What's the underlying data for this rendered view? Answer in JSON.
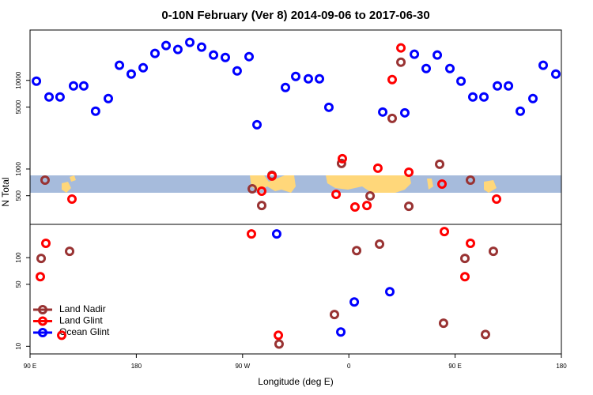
{
  "chart_data": {
    "type": "scatter",
    "title": "0-10N February (Ver 8)   2014-09-06 to 2017-06-30",
    "x_label": "Longitude (deg E)",
    "y_label": "N Total",
    "xlim": [
      90,
      540
    ],
    "xticks": [
      {
        "value": 90,
        "label": "90 E"
      },
      180,
      {
        "value": 270,
        "label": "90 W"
      },
      {
        "value": 360,
        "label": "0"
      },
      {
        "value": 450,
        "label": "90 E"
      },
      {
        "value": 540,
        "label": "180"
      }
    ],
    "ylim": [
      8.2,
      37000
    ],
    "y_scale": "log",
    "yticks": [
      10,
      50,
      100,
      500,
      1000,
      5000,
      10000
    ],
    "legend": "lower left",
    "series": [
      {
        "name": "Land Nadir",
        "color": "#993333",
        "x": [
          102.7,
          99.4,
          123.5,
          278.2,
          286.2,
          294.9,
          300.9,
          347.8,
          353.8,
          366.6,
          378,
          386,
          396.7,
          404.1,
          410.8,
          436.9,
          440.2,
          458.3,
          463,
          475.7,
          482.4
        ],
        "values": [
          750,
          98,
          118,
          598,
          388,
          849,
          10.6,
          22.8,
          1155,
          120,
          497,
          142,
          3728,
          16040,
          380,
          1132,
          18.2,
          98,
          750,
          13.6,
          118
        ]
      },
      {
        "name": "Land Glint",
        "color": "#ff0000",
        "x": [
          103.4,
          98.7,
          125.5,
          116.8,
          277.5,
          286.2,
          294.9,
          300.3,
          349.2,
          354.5,
          365.2,
          375.3,
          384.6,
          396.7,
          404.1,
          410.8,
          438.9,
          440.9,
          458.3,
          463,
          485.1
        ],
        "values": [
          145,
          61,
          458,
          13.3,
          185,
          562,
          832,
          13.3,
          518,
          1307,
          373,
          388,
          1021,
          10210,
          23230,
          921,
          677,
          197,
          61,
          145,
          458
        ]
      },
      {
        "name": "Ocean Glint",
        "color": "#0000ff",
        "x": [
          95.4,
          106.1,
          115.4,
          126.8,
          135.5,
          145.5,
          156.3,
          165.7,
          175.7,
          185.8,
          195.8,
          205.2,
          215.2,
          225.3,
          235.3,
          245.4,
          255.4,
          265.4,
          275.5,
          282.2,
          306.3,
          315,
          325.7,
          335.1,
          343.1,
          388.7,
          407.4,
          415.5,
          425.5,
          434.9,
          445.6,
          455,
          465,
          474.4,
          485.8,
          495.2,
          505.2,
          515.9,
          524.6,
          535.3,
          298.9,
          364.6,
          394.7,
          353.2
        ],
        "values": [
          9800,
          6494,
          6494,
          8660,
          8660,
          4487,
          6237,
          14790,
          11780,
          13900,
          20130,
          24720,
          22300,
          26840,
          23710,
          19310,
          18150,
          12800,
          18530,
          3162,
          8310,
          11090,
          10420,
          10420,
          4970,
          4394,
          4305,
          19710,
          13620,
          19310,
          13620,
          9800,
          6494,
          6494,
          8660,
          8660,
          4487,
          6237,
          14790,
          11780,
          185,
          31.6,
          41.3,
          14.5
        ]
      }
    ]
  }
}
